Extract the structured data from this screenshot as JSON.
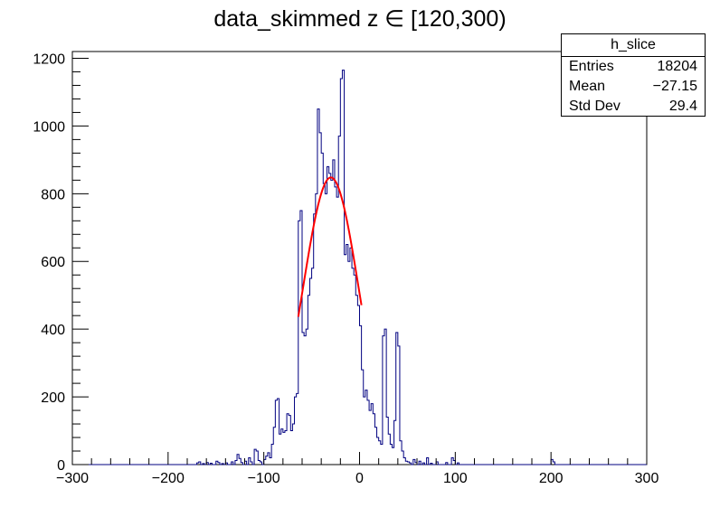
{
  "title": "data_skimmed z  ∈ [120,300)",
  "stats": {
    "name": "h_slice",
    "rows": [
      {
        "label": "Entries",
        "value": "18204"
      },
      {
        "label": "Mean",
        "value": "−27.15"
      },
      {
        "label": "Std Dev",
        "value": "29.4"
      }
    ]
  },
  "chart_data": {
    "type": "histogram",
    "title": "data_skimmed z  ∈ [120,300)",
    "xlabel": "",
    "ylabel": "",
    "xlim": [
      -300,
      300
    ],
    "ylim": [
      0,
      1220
    ],
    "x_ticks": [
      -300,
      -200,
      -100,
      0,
      100,
      200,
      300
    ],
    "x_tick_labels": [
      "−300",
      "−200",
      "−100",
      "0",
      "100",
      "200",
      "300"
    ],
    "y_ticks": [
      0,
      200,
      400,
      600,
      800,
      1000,
      1200
    ],
    "y_tick_labels": [
      "0",
      "200",
      "400",
      "600",
      "800",
      "1000",
      "1200"
    ],
    "bin_width": 2,
    "histogram_color": "#000080",
    "fit_color": "#ff0000",
    "histogram": [
      [
        -170,
        5
      ],
      [
        -168,
        8
      ],
      [
        -164,
        3
      ],
      [
        -160,
        6
      ],
      [
        -156,
        4
      ],
      [
        -150,
        10
      ],
      [
        -148,
        6
      ],
      [
        -144,
        3
      ],
      [
        -140,
        5
      ],
      [
        -134,
        8
      ],
      [
        -130,
        12
      ],
      [
        -128,
        30
      ],
      [
        -126,
        18
      ],
      [
        -124,
        6
      ],
      [
        -120,
        10
      ],
      [
        -116,
        20
      ],
      [
        -114,
        8
      ],
      [
        -110,
        45
      ],
      [
        -108,
        40
      ],
      [
        -106,
        12
      ],
      [
        -104,
        8
      ],
      [
        -100,
        15
      ],
      [
        -98,
        25
      ],
      [
        -96,
        35
      ],
      [
        -94,
        20
      ],
      [
        -92,
        60
      ],
      [
        -90,
        110
      ],
      [
        -88,
        190
      ],
      [
        -86,
        195
      ],
      [
        -84,
        90
      ],
      [
        -82,
        105
      ],
      [
        -80,
        95
      ],
      [
        -78,
        100
      ],
      [
        -76,
        150
      ],
      [
        -74,
        145
      ],
      [
        -72,
        100
      ],
      [
        -70,
        120
      ],
      [
        -68,
        200
      ],
      [
        -66,
        210
      ],
      [
        -64,
        720
      ],
      [
        -62,
        750
      ],
      [
        -60,
        390
      ],
      [
        -58,
        380
      ],
      [
        -56,
        400
      ],
      [
        -54,
        500
      ],
      [
        -52,
        550
      ],
      [
        -50,
        580
      ],
      [
        -48,
        740
      ],
      [
        -46,
        800
      ],
      [
        -44,
        1050
      ],
      [
        -42,
        980
      ],
      [
        -40,
        920
      ],
      [
        -38,
        830
      ],
      [
        -36,
        800
      ],
      [
        -34,
        880
      ],
      [
        -32,
        860
      ],
      [
        -30,
        840
      ],
      [
        -28,
        900
      ],
      [
        -26,
        820
      ],
      [
        -24,
        790
      ],
      [
        -22,
        970
      ],
      [
        -20,
        1140
      ],
      [
        -18,
        1165
      ],
      [
        -16,
        620
      ],
      [
        -14,
        650
      ],
      [
        -12,
        600
      ],
      [
        -10,
        640
      ],
      [
        -8,
        580
      ],
      [
        -6,
        560
      ],
      [
        -4,
        500
      ],
      [
        -2,
        470
      ],
      [
        0,
        410
      ],
      [
        2,
        280
      ],
      [
        4,
        200
      ],
      [
        6,
        220
      ],
      [
        8,
        190
      ],
      [
        10,
        160
      ],
      [
        12,
        180
      ],
      [
        14,
        150
      ],
      [
        16,
        110
      ],
      [
        18,
        80
      ],
      [
        20,
        70
      ],
      [
        22,
        60
      ],
      [
        24,
        380
      ],
      [
        26,
        400
      ],
      [
        28,
        140
      ],
      [
        30,
        90
      ],
      [
        32,
        60
      ],
      [
        34,
        50
      ],
      [
        36,
        130
      ],
      [
        38,
        390
      ],
      [
        40,
        350
      ],
      [
        42,
        70
      ],
      [
        44,
        40
      ],
      [
        46,
        20
      ],
      [
        48,
        10
      ],
      [
        50,
        8
      ],
      [
        52,
        5
      ],
      [
        56,
        15
      ],
      [
        58,
        6
      ],
      [
        62,
        10
      ],
      [
        66,
        5
      ],
      [
        70,
        20
      ],
      [
        74,
        4
      ],
      [
        80,
        8
      ],
      [
        90,
        6
      ],
      [
        96,
        20
      ],
      [
        98,
        12
      ],
      [
        102,
        5
      ],
      [
        200,
        15
      ],
      [
        202,
        8
      ]
    ],
    "fit": {
      "function": "gaussian",
      "range": [
        -64,
        2
      ],
      "constant": 848,
      "mean": -30,
      "sigma": 29.5
    }
  }
}
